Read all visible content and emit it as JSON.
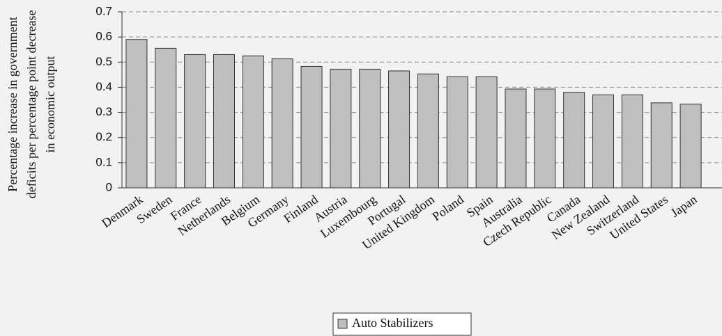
{
  "chart_data": {
    "type": "bar",
    "ylabel": [
      "Percentage increase in government",
      "deficits per percentage point decrease",
      "in economic output"
    ],
    "categories": [
      "Denmark",
      "Sweden",
      "France",
      "Netherlands",
      "Belgium",
      "Germany",
      "Finland",
      "Austria",
      "Luxembourg",
      "Portugal",
      "United Kingdom",
      "Poland",
      "Spain",
      "Australia",
      "Czech Republic",
      "Canada",
      "New Zealand",
      "Switzerland",
      "United States",
      "Japan"
    ],
    "series": [
      {
        "name": "Auto Stabilizers",
        "color": "#bfbfbf",
        "values": [
          0.59,
          0.555,
          0.53,
          0.53,
          0.525,
          0.513,
          0.483,
          0.472,
          0.472,
          0.465,
          0.453,
          0.442,
          0.442,
          0.393,
          0.393,
          0.38,
          0.37,
          0.37,
          0.338,
          0.333
        ]
      }
    ],
    "ylim": [
      0,
      0.7
    ],
    "yticks": [
      0,
      0.1,
      0.2,
      0.3,
      0.4,
      0.5,
      0.6,
      0.7
    ],
    "grid": true
  }
}
